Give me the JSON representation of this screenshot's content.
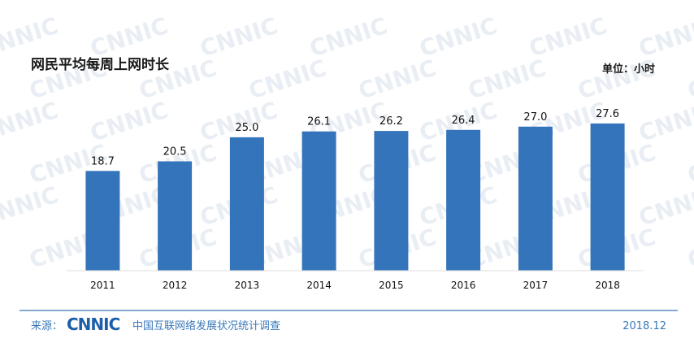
{
  "chart_data": {
    "type": "bar",
    "title": "网民平均每周上网时长",
    "unit_label": "单位：小时",
    "categories": [
      "2011",
      "2012",
      "2013",
      "2014",
      "2015",
      "2016",
      "2017",
      "2018"
    ],
    "values": [
      18.7,
      20.5,
      25.0,
      26.1,
      26.2,
      26.4,
      27.0,
      27.6
    ],
    "value_labels": [
      "18.7",
      "20.5",
      "25.0",
      "26.1",
      "26.2",
      "26.4",
      "27.0",
      "27.6"
    ],
    "ylim": [
      0,
      32
    ],
    "grid": false,
    "bar_color": "#3474bb"
  },
  "footer": {
    "source_label": "来源：",
    "logo_text": "CNNIC",
    "org_name": "中国互联网络发展状况统计调查",
    "date": "2018.12",
    "accent_color": "#3a78b8"
  },
  "watermark": {
    "text": "CNNIC"
  }
}
